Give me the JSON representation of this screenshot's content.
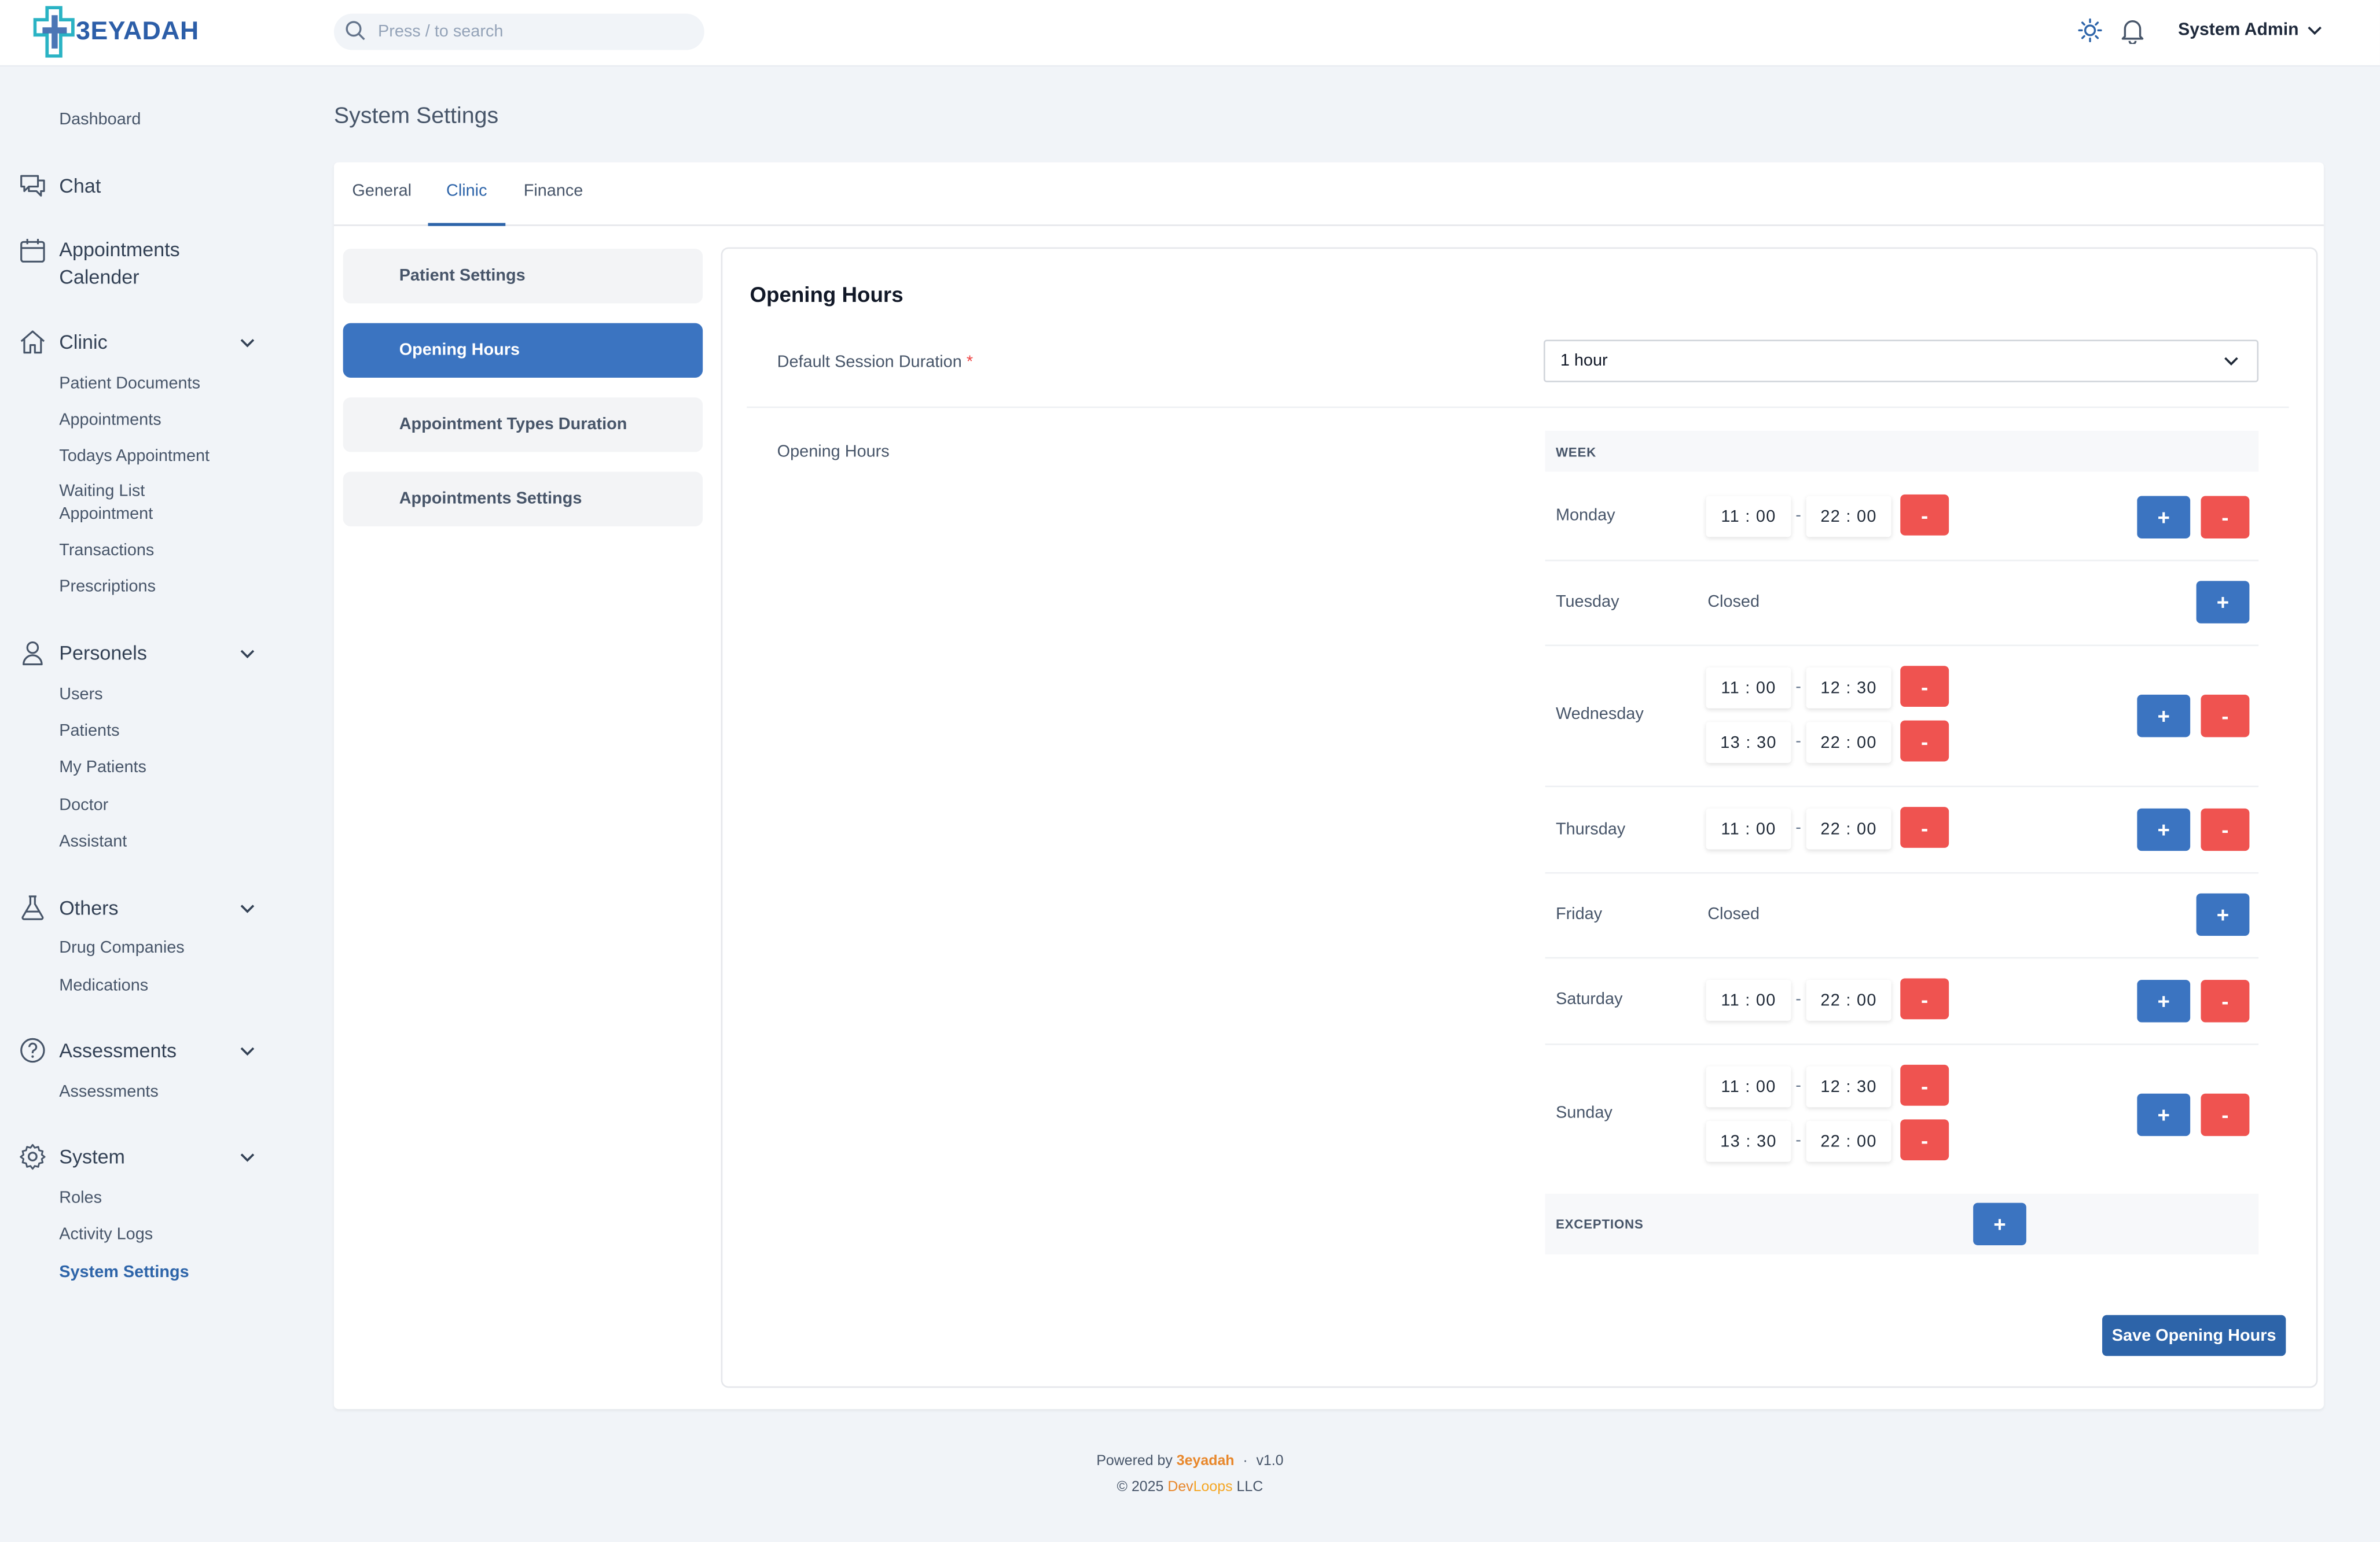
{
  "header": {
    "logo_text": "3EYADAH",
    "search_placeholder": "Press / to search",
    "user_name": "System Admin",
    "icons": [
      "sun-icon",
      "bell-icon",
      "chevron-down-icon",
      "search-icon"
    ]
  },
  "sidebar": {
    "dashboard": "Dashboard",
    "chat": "Chat",
    "appointments_calendar_line1": "Appointments",
    "appointments_calendar_line2": "Calender",
    "groups": [
      {
        "label": "Clinic",
        "icon": "home-icon",
        "items": [
          "Patient Documents",
          "Appointments",
          "Todays Appointment",
          "Waiting List",
          "Appointment",
          "Transactions",
          "Prescriptions"
        ]
      },
      {
        "label": "Personels",
        "icon": "user-icon",
        "items": [
          "Users",
          "Patients",
          "My Patients",
          "Doctor",
          "Assistant"
        ]
      },
      {
        "label": "Others",
        "icon": "flask-icon",
        "items": [
          "Drug Companies",
          "Medications"
        ]
      },
      {
        "label": "Assessments",
        "icon": "question-circle-icon",
        "items": [
          "Assessments"
        ]
      },
      {
        "label": "System",
        "icon": "gear-icon",
        "items": [
          "Roles",
          "Activity Logs",
          "System Settings"
        ]
      }
    ]
  },
  "main": {
    "page_title": "System Settings",
    "tabs": [
      "General",
      "Clinic",
      "Finance"
    ],
    "active_tab": "Clinic",
    "side_menu": [
      "Patient Settings",
      "Opening Hours",
      "Appointment Types Duration",
      "Appointments Settings"
    ],
    "active_side": "Opening Hours",
    "panel": {
      "title": "Opening Hours",
      "session_label": "Default Session Duration",
      "required_mark": "*",
      "session_value": "1 hour",
      "opening_hours_label": "Opening Hours",
      "week_header": "WEEK",
      "exceptions_header": "EXCEPTIONS",
      "save_label": "Save Opening Hours",
      "separator": "-",
      "plus": "+",
      "minus": "-",
      "days": [
        {
          "name": "Monday",
          "slots": [
            [
              "11 : 00",
              "22 : 00"
            ]
          ]
        },
        {
          "name": "Tuesday",
          "closed": "Closed"
        },
        {
          "name": "Wednesday",
          "slots": [
            [
              "11 : 00",
              "12 : 30"
            ],
            [
              "13 : 30",
              "22 : 00"
            ]
          ]
        },
        {
          "name": "Thursday",
          "slots": [
            [
              "11 : 00",
              "22 : 00"
            ]
          ]
        },
        {
          "name": "Friday",
          "closed": "Closed"
        },
        {
          "name": "Saturday",
          "slots": [
            [
              "11 : 00",
              "22 : 00"
            ]
          ]
        },
        {
          "name": "Sunday",
          "slots": [
            [
              "11 : 00",
              "12 : 30"
            ],
            [
              "13 : 30",
              "22 : 00"
            ]
          ]
        }
      ]
    }
  },
  "footer": {
    "powered_by": "Powered by",
    "brand": "3eyadah",
    "dot": "·",
    "version": "v1.0",
    "copyright": "© 2025",
    "company_part1": "Dev",
    "company_part2": "Loops",
    "company_suffix": "LLC"
  },
  "colors": {
    "primary": "#3b74c1",
    "danger": "#ef5350",
    "accent": "#e8872b",
    "background": "#f1f4f8"
  }
}
